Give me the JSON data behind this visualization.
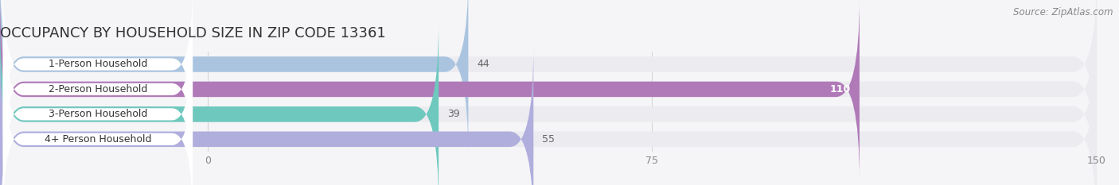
{
  "title": "OCCUPANCY BY HOUSEHOLD SIZE IN ZIP CODE 13361",
  "source": "Source: ZipAtlas.com",
  "categories": [
    "1-Person Household",
    "2-Person Household",
    "3-Person Household",
    "4+ Person Household"
  ],
  "values": [
    44,
    110,
    39,
    55
  ],
  "bar_colors": [
    "#aac4e0",
    "#b07ab8",
    "#6ec8be",
    "#b0aedd"
  ],
  "bar_bg_color": "#ebebf0",
  "label_pill_color": "#ffffff",
  "xlim_left": -35,
  "xlim_right": 150,
  "xticks": [
    0,
    75,
    150
  ],
  "figsize": [
    14.06,
    2.33
  ],
  "dpi": 100,
  "title_fontsize": 13,
  "label_fontsize": 9,
  "value_fontsize": 9,
  "source_fontsize": 8.5,
  "bar_height": 0.62,
  "background_color": "#f5f5f7",
  "label_text_color": "#333333",
  "value_text_dark": "#666666",
  "value_text_light": "#ffffff"
}
